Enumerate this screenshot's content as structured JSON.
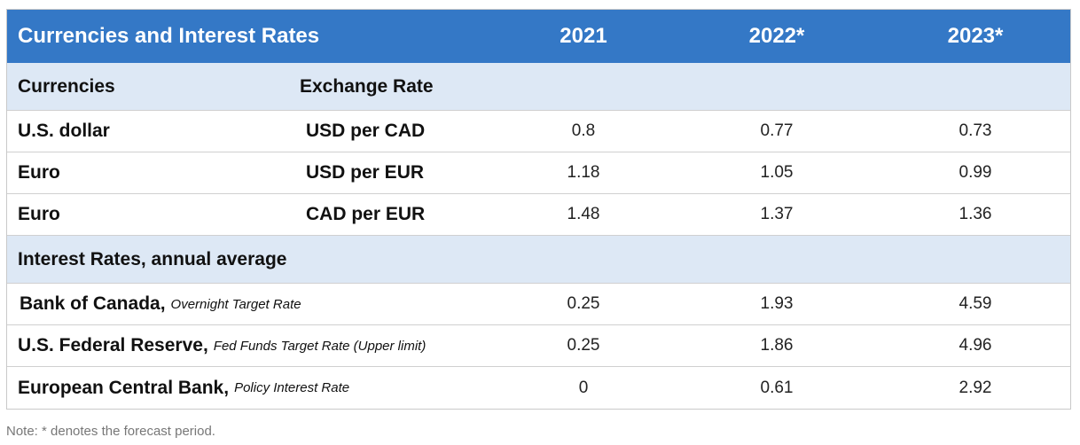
{
  "table": {
    "header": {
      "title": "Currencies and Interest Rates",
      "years": [
        "2021",
        "2022*",
        "2023*"
      ]
    },
    "currencies_section": {
      "label": "Currencies",
      "rate_label": "Exchange Rate",
      "rows": [
        {
          "label": "U.S. dollar",
          "rate": "USD per CAD",
          "values": [
            "0.8",
            "0.77",
            "0.73"
          ]
        },
        {
          "label": "Euro",
          "rate": "USD per EUR",
          "values": [
            "1.18",
            "1.05",
            "0.99"
          ]
        },
        {
          "label": "Euro",
          "rate": "CAD per EUR",
          "values": [
            "1.48",
            "1.37",
            "1.36"
          ]
        }
      ]
    },
    "interest_section": {
      "label": "Interest Rates, annual average",
      "rows": [
        {
          "label": "Bank of Canada,",
          "sub": "Overnight Target Rate",
          "values": [
            "0.25",
            "1.93",
            "4.59"
          ]
        },
        {
          "label": "U.S. Federal Reserve,",
          "sub": "Fed Funds Target Rate (Upper limit)",
          "values": [
            "0.25",
            "1.86",
            "4.96"
          ]
        },
        {
          "label": "European Central Bank,",
          "sub": "Policy Interest Rate",
          "values": [
            "0",
            "0.61",
            "2.92"
          ]
        }
      ]
    }
  },
  "note": "Note: * denotes the forecast period.",
  "colors": {
    "header_bg": "#3478c6",
    "section_bg": "#dde8f5"
  }
}
